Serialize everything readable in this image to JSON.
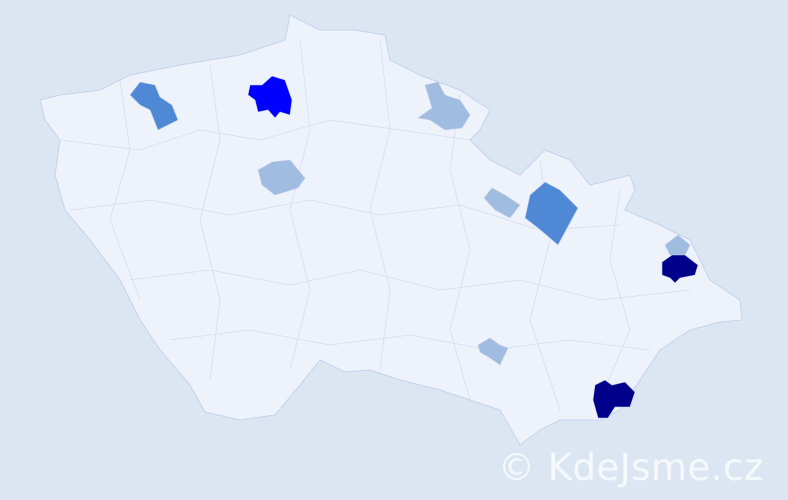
{
  "map": {
    "colors": {
      "background": "#dce6f2",
      "land": "#eef2fb",
      "level1": "#a0bce0",
      "level2": "#4f88d4",
      "level3": "#0000ff",
      "level4": "#00008b"
    },
    "highlighted_region_levels": [
      2,
      3,
      1,
      1,
      1,
      2,
      1,
      4,
      1,
      4
    ]
  },
  "watermark": "© KdeJsme.cz"
}
